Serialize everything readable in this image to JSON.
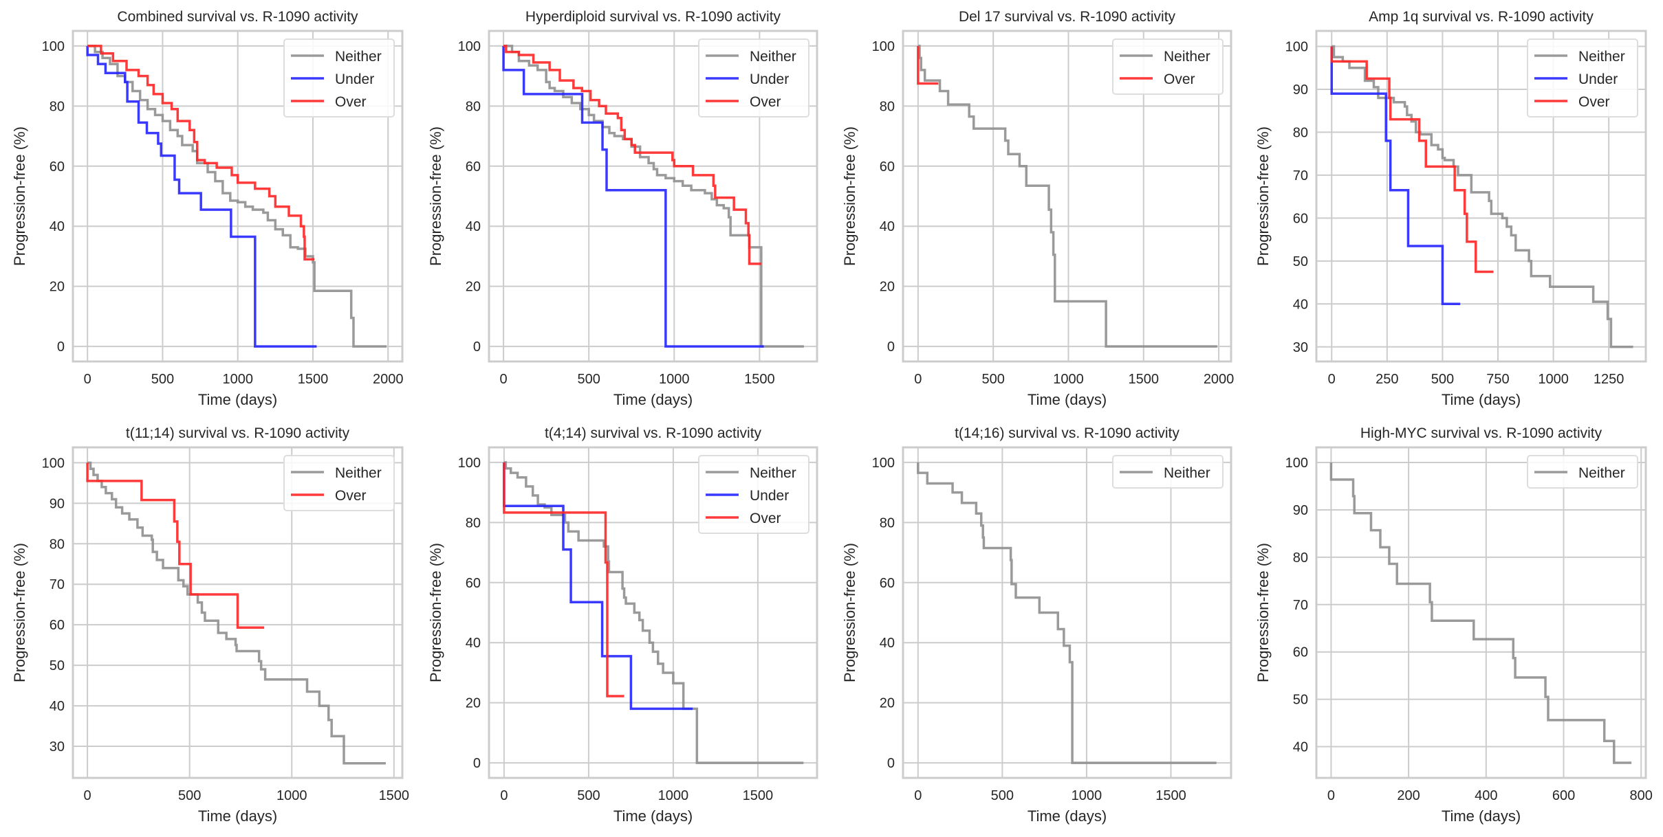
{
  "colors": {
    "Neither": "#8f8f8f",
    "Under": "#2525ff",
    "Over": "#ff2525",
    "grid": "#cccccc",
    "background": "#ffffff"
  },
  "chart_data": [
    {
      "type": "line",
      "step": "post",
      "title": "Combined survival vs. R-1090 activity",
      "xlabel": "Time (days)",
      "ylabel": "Progression-free (%)",
      "xlim": [
        -97,
        2095
      ],
      "ylim": [
        -5,
        105
      ],
      "xticks": [
        0,
        500,
        1000,
        1500,
        2000
      ],
      "yticks": [
        0,
        20,
        40,
        60,
        80,
        100
      ],
      "grid": true,
      "legend": "upper right",
      "series": [
        {
          "name": "Neither",
          "x": [
            0,
            50,
            100,
            150,
            200,
            250,
            300,
            350,
            400,
            450,
            500,
            550,
            600,
            630,
            700,
            730,
            800,
            850,
            900,
            950,
            1000,
            1050,
            1100,
            1170,
            1200,
            1250,
            1300,
            1350,
            1400,
            1450,
            1500,
            1510,
            1755,
            1770,
            1990
          ],
          "y": [
            100,
            98,
            96,
            94,
            90,
            88,
            85,
            82,
            79,
            77,
            75,
            72,
            70,
            67,
            65,
            61,
            58,
            55,
            51,
            48.5,
            48,
            46.5,
            45.5,
            44.5,
            42,
            39,
            37,
            33,
            32.5,
            30,
            28,
            18.5,
            9.5,
            0,
            0
          ]
        },
        {
          "name": "Under",
          "x": [
            0,
            0,
            70,
            120,
            250,
            265,
            340,
            395,
            470,
            490,
            580,
            610,
            755,
            955,
            1115,
            1525
          ],
          "y": [
            100,
            97,
            94,
            91,
            88,
            81.5,
            74.5,
            71,
            67.5,
            63.5,
            55.5,
            51,
            45.5,
            36.5,
            0,
            0
          ]
        },
        {
          "name": "Over",
          "x": [
            0,
            90,
            170,
            260,
            340,
            400,
            440,
            500,
            560,
            600,
            680,
            710,
            730,
            780,
            860,
            960,
            1000,
            1115,
            1210,
            1250,
            1340,
            1420,
            1440,
            1445,
            1510
          ],
          "y": [
            100,
            97.5,
            95,
            92,
            90,
            87,
            84,
            81,
            79,
            75,
            72,
            68,
            62,
            61,
            59.5,
            57,
            54.5,
            52.5,
            50,
            46.5,
            43.5,
            40,
            36.5,
            29,
            29
          ]
        }
      ]
    },
    {
      "type": "line",
      "step": "post",
      "title": "Hyperdiploid survival vs. R-1090 activity",
      "xlabel": "Time (days)",
      "ylabel": "Progression-free (%)",
      "xlim": [
        -85,
        1837
      ],
      "ylim": [
        -5,
        105
      ],
      "xticks": [
        0,
        500,
        1000,
        1500
      ],
      "yticks": [
        0,
        20,
        40,
        60,
        80,
        100
      ],
      "grid": true,
      "legend": "upper right",
      "series": [
        {
          "name": "Neither",
          "x": [
            0,
            50,
            90,
            150,
            200,
            250,
            270,
            300,
            350,
            400,
            450,
            500,
            530,
            580,
            620,
            650,
            700,
            750,
            800,
            850,
            880,
            900,
            950,
            1000,
            1050,
            1100,
            1180,
            1220,
            1250,
            1290,
            1320,
            1330,
            1440,
            1510,
            1760
          ],
          "y": [
            100,
            98,
            95,
            93.5,
            92,
            88,
            86,
            85,
            83,
            81,
            79,
            77,
            75,
            73,
            71,
            70,
            69,
            66.5,
            63,
            61,
            59,
            57,
            56,
            55,
            53.5,
            52,
            51,
            49,
            47,
            46,
            43,
            37,
            33,
            0,
            0
          ]
        },
        {
          "name": "Under",
          "x": [
            0,
            0,
            119,
            461,
            580,
            604,
            950,
            1525
          ],
          "y": [
            100,
            92,
            84,
            74.5,
            65.5,
            52,
            0,
            0
          ]
        },
        {
          "name": "Over",
          "x": [
            0,
            15,
            90,
            175,
            270,
            330,
            410,
            460,
            510,
            560,
            600,
            670,
            690,
            710,
            750,
            770,
            990,
            1000,
            1110,
            1230,
            1240,
            1350,
            1420,
            1435,
            1440,
            1510
          ],
          "y": [
            100,
            98,
            97,
            94.5,
            92,
            88.5,
            86,
            85,
            82,
            80,
            77.5,
            76,
            72,
            69,
            67,
            64.5,
            62,
            60,
            57,
            53.5,
            49.5,
            45.5,
            41,
            37,
            27.5,
            27.5
          ]
        }
      ]
    },
    {
      "type": "line",
      "step": "post",
      "title": "Del 17 survival vs. R-1090 activity",
      "xlabel": "Time (days)",
      "ylabel": "Progression-free (%)",
      "xlim": [
        -100,
        2082
      ],
      "ylim": [
        -5,
        105
      ],
      "xticks": [
        0,
        500,
        1000,
        1500,
        2000
      ],
      "yticks": [
        0,
        20,
        40,
        60,
        80,
        100
      ],
      "grid": true,
      "legend": "upper right",
      "series": [
        {
          "name": "Neither",
          "x": [
            0,
            10,
            20,
            45,
            145,
            200,
            340,
            370,
            580,
            600,
            675,
            720,
            870,
            885,
            900,
            910,
            1250,
            1990
          ],
          "y": [
            100,
            96,
            92,
            88.5,
            85,
            80.5,
            76.5,
            72.5,
            68.5,
            64,
            60,
            53.5,
            45.5,
            38,
            30.5,
            15,
            0,
            0
          ]
        },
        {
          "name": "Over",
          "x": [
            0,
            0,
            135
          ],
          "y": [
            100,
            87.5,
            87.5
          ]
        }
      ]
    },
    {
      "type": "line",
      "step": "post",
      "title": "Amp 1q survival vs. R-1090 activity",
      "xlabel": "Time (days)",
      "ylabel": "Progression-free (%)",
      "xlim": [
        -69,
        1417
      ],
      "ylim": [
        26.6,
        103.6
      ],
      "xticks": [
        0,
        250,
        500,
        750,
        1000,
        1250
      ],
      "yticks": [
        30,
        40,
        50,
        60,
        70,
        80,
        90,
        100
      ],
      "grid": true,
      "legend": "upper right",
      "series": [
        {
          "name": "Neither",
          "x": [
            0,
            10,
            50,
            80,
            150,
            190,
            210,
            280,
            330,
            340,
            360,
            380,
            400,
            450,
            480,
            500,
            510,
            550,
            570,
            630,
            710,
            720,
            770,
            790,
            810,
            830,
            890,
            900,
            985,
            1180,
            1245,
            1260,
            1360
          ],
          "y": [
            100,
            97.5,
            96.5,
            95,
            92,
            90.5,
            88,
            87,
            86,
            84,
            82.5,
            80,
            79.5,
            77,
            76,
            74,
            73.5,
            72,
            70,
            66,
            64,
            61,
            60,
            58,
            56,
            52.5,
            50,
            46.5,
            44,
            40.5,
            36.5,
            30,
            30
          ]
        },
        {
          "name": "Under",
          "x": [
            0,
            0,
            245,
            265,
            345,
            500,
            580
          ],
          "y": [
            100,
            89,
            78,
            66.5,
            53.5,
            40,
            40
          ]
        },
        {
          "name": "Over",
          "x": [
            0,
            0,
            158,
            260,
            265,
            395,
            425,
            555,
            600,
            610,
            650,
            730
          ],
          "y": [
            100,
            96.5,
            92.5,
            88,
            83,
            78,
            72,
            66.5,
            61,
            54.5,
            47.5,
            47.5
          ]
        }
      ]
    },
    {
      "type": "line",
      "step": "post",
      "title": "t(11;14) survival vs. R-1090 activity",
      "xlabel": "Time (days)",
      "ylabel": "Progression-free (%)",
      "xlim": [
        -71,
        1541
      ],
      "ylim": [
        22.2,
        103.8
      ],
      "xticks": [
        0,
        500,
        1000,
        1500
      ],
      "yticks": [
        30,
        40,
        50,
        60,
        70,
        80,
        90,
        100
      ],
      "grid": true,
      "legend": "upper right",
      "series": [
        {
          "name": "Neither",
          "x": [
            0,
            15,
            30,
            50,
            70,
            90,
            120,
            140,
            170,
            205,
            245,
            270,
            315,
            320,
            340,
            370,
            445,
            470,
            490,
            540,
            560,
            575,
            640,
            680,
            725,
            730,
            840,
            850,
            870,
            1075,
            1135,
            1180,
            1195,
            1255,
            1460
          ],
          "y": [
            100,
            98.5,
            97,
            95.5,
            94,
            92.5,
            91,
            89,
            87.5,
            86,
            84,
            82,
            81,
            78,
            76,
            74,
            71,
            69.5,
            67.5,
            65.5,
            63,
            61,
            58,
            56.5,
            55,
            53.5,
            51,
            49,
            46.5,
            43.5,
            40,
            36.5,
            32.5,
            25.8,
            25.8
          ]
        },
        {
          "name": "Over",
          "x": [
            0,
            0,
            265,
            425,
            440,
            450,
            505,
            735,
            865
          ],
          "y": [
            100,
            95.5,
            90.8,
            85.5,
            80.5,
            75,
            67.5,
            59.3,
            59.3
          ]
        }
      ]
    },
    {
      "type": "line",
      "step": "post",
      "title": "t(4;14) survival vs. R-1090 activity",
      "xlabel": "Time (days)",
      "ylabel": "Progression-free (%)",
      "xlim": [
        -89,
        1850
      ],
      "ylim": [
        -5,
        105
      ],
      "xticks": [
        0,
        500,
        1000,
        1500
      ],
      "yticks": [
        0,
        20,
        40,
        60,
        80,
        100
      ],
      "grid": true,
      "legend": "upper right",
      "series": [
        {
          "name": "Neither",
          "x": [
            0,
            10,
            40,
            80,
            130,
            170,
            200,
            240,
            280,
            360,
            380,
            440,
            590,
            615,
            620,
            700,
            710,
            720,
            770,
            800,
            820,
            860,
            880,
            910,
            940,
            1000,
            1060,
            1140,
            1350,
            1770
          ],
          "y": [
            100,
            98,
            96.5,
            95,
            92,
            89,
            86,
            85,
            82.5,
            80,
            77,
            74,
            72,
            67,
            63.5,
            58,
            55,
            53,
            50,
            47.5,
            44,
            40,
            37,
            33,
            30,
            26.5,
            18,
            0,
            0,
            0
          ]
        },
        {
          "name": "Under",
          "x": [
            0,
            0,
            350,
            395,
            580,
            750,
            1115
          ],
          "y": [
            100,
            85.5,
            71,
            53.5,
            35.5,
            18,
            18
          ]
        },
        {
          "name": "Over",
          "x": [
            0,
            0,
            600,
            610,
            710
          ],
          "y": [
            100,
            83.3,
            66.7,
            22.2,
            22.2
          ]
        }
      ]
    },
    {
      "type": "line",
      "step": "post",
      "title": "t(14;16) survival vs. R-1090 activity",
      "xlabel": "Time (days)",
      "ylabel": "Progression-free (%)",
      "xlim": [
        -89,
        1857
      ],
      "ylim": [
        -5,
        105
      ],
      "xticks": [
        0,
        500,
        1000,
        1500
      ],
      "yticks": [
        0,
        20,
        40,
        60,
        80,
        100
      ],
      "grid": true,
      "legend": "upper right",
      "series": [
        {
          "name": "Neither",
          "x": [
            0,
            0,
            55,
            205,
            260,
            345,
            375,
            385,
            390,
            550,
            555,
            580,
            720,
            830,
            865,
            900,
            915,
            1770
          ],
          "y": [
            100,
            96.5,
            93,
            90,
            86.5,
            83,
            79,
            75,
            71.5,
            67.5,
            59.5,
            55,
            50,
            44.5,
            39,
            33.5,
            0,
            0
          ]
        }
      ]
    },
    {
      "type": "line",
      "step": "post",
      "title": "High-MYC survival vs. R-1090 activity",
      "xlabel": "Time (days)",
      "ylabel": "Progression-free (%)",
      "xlim": [
        -38,
        812
      ],
      "ylim": [
        33.4,
        103.2
      ],
      "xticks": [
        0,
        200,
        400,
        600,
        800
      ],
      "yticks": [
        40,
        50,
        60,
        70,
        80,
        90,
        100
      ],
      "grid": true,
      "legend": "upper right",
      "series": [
        {
          "name": "Neither",
          "x": [
            0,
            0,
            57,
            60,
            103,
            127,
            150,
            170,
            255,
            260,
            368,
            470,
            475,
            553,
            560,
            705,
            730,
            775
          ],
          "y": [
            100,
            96.4,
            92.9,
            89.3,
            85.7,
            82.1,
            78.6,
            74.4,
            70.5,
            66.6,
            62.7,
            58.7,
            54.6,
            50.5,
            45.6,
            41.2,
            36.6,
            36.6
          ]
        }
      ]
    }
  ]
}
